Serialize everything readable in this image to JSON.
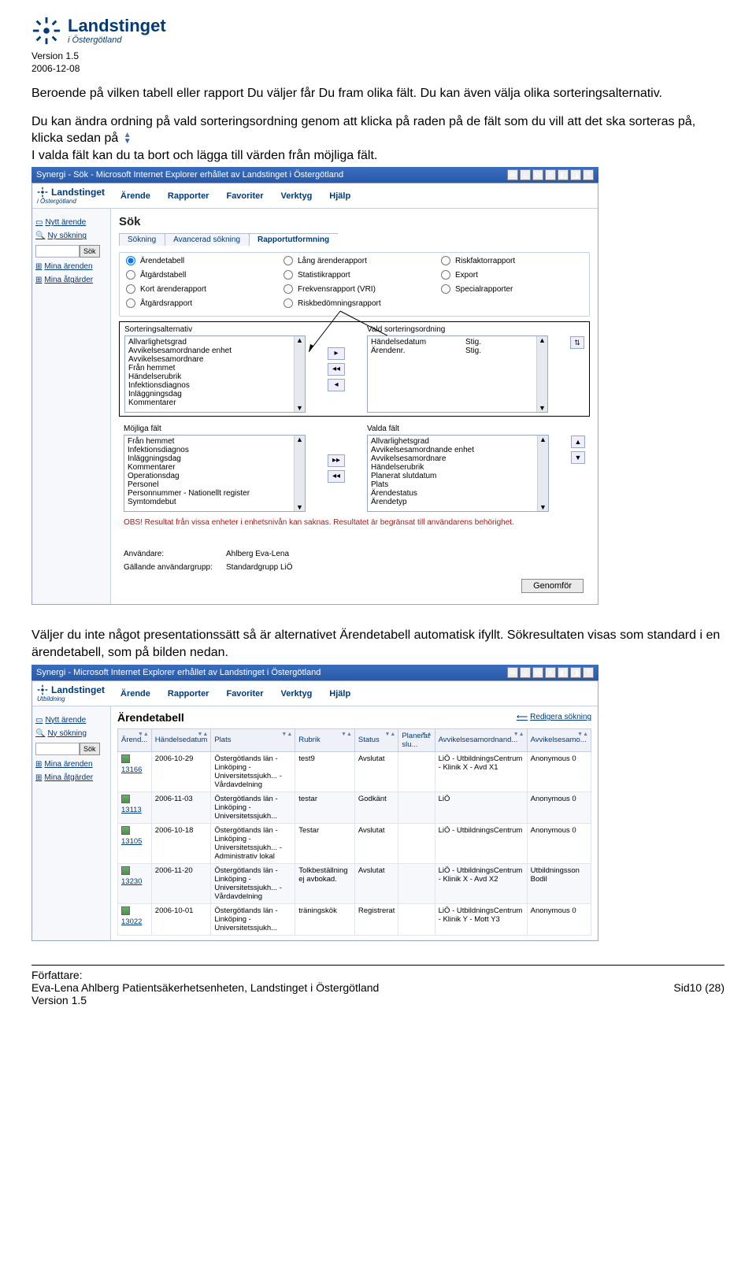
{
  "doc": {
    "logo_title": "Landstinget",
    "logo_sub": "i Östergötland",
    "version_label": "Version 1.5",
    "date": "2006-12-08",
    "para1": "Beroende på vilken tabell eller rapport Du väljer får Du fram olika fält. Du kan även välja olika sorteringsalternativ.",
    "para2a": "Du kan ändra ordning på vald sorteringsordning genom att klicka på raden på de fält som du vill att det ska sorteras på, klicka sedan på",
    "para2b": "I valda fält kan du ta bort och lägga till värden från möjliga fält.",
    "para3": "Väljer du inte något presentationssätt så är alternativet Ärendetabell automatisk ifyllt. Sökresultaten visas som standard i en ärendetabell, som på bilden nedan.",
    "footer_heading": "Författare:",
    "footer_author": "Eva-Lena Ahlberg Patientsäkerhetsenheten, Landstinget i Östergötland",
    "footer_version": "Version 1.5",
    "page_num": "Sid10 (28)"
  },
  "colors": {
    "brand_blue": "#003a7a",
    "titlebar_top": "#3b6ec0",
    "titlebar_bottom": "#285aa8",
    "border_light": "#c5cfde",
    "border_mid": "#97a8c7",
    "bg_soft": "#f6f8fb",
    "note_red": "#aa1a1a"
  },
  "shot1": {
    "titlebar": "Synergi - Sök - Microsoft Internet Explorer erhållet av Landstinget i Östergötland",
    "menubar": [
      "Ärende",
      "Rapporter",
      "Favoriter",
      "Verktyg",
      "Hjälp"
    ],
    "sidebar": {
      "nytt": "Nytt ärende",
      "nysok": "Ny sökning",
      "sok_btn": "Sök",
      "mina_ar": "Mina ärenden",
      "mina_at": "Mina åtgärder"
    },
    "sok_heading": "Sök",
    "tabs": [
      "Sökning",
      "Avancerad sökning",
      "Rapportutformning"
    ],
    "radios": [
      "Ärendetabell",
      "Lång ärenderapport",
      "Riskfaktorrapport",
      "Åtgärdstabell",
      "Statistikrapport",
      "Export",
      "Kort ärenderapport",
      "Frekvensrapport (VRI)",
      "Specialrapporter",
      "Åtgärdsrapport",
      "Riskbedömningsrapport",
      ""
    ],
    "radio_selected_index": 0,
    "sort_label": "Sorteringsalternativ",
    "sort_items": [
      "Allvarlighetsgrad",
      "Avvikelsesamordnande enhet",
      "Avvikelsesamordnare",
      "Från hemmet",
      "Händelserubrik",
      "Infektionsdiagnos",
      "Inläggningsdag",
      "Kommentarer"
    ],
    "vald_sort_label": "Vald sorteringsordning",
    "vald_sort_rows": [
      {
        "a": "Händelsedatum",
        "b": "Stig."
      },
      {
        "a": "Ärendenr.",
        "b": "Stig."
      }
    ],
    "mojliga_label": "Möjliga fält",
    "mojliga_items": [
      "Från hemmet",
      "Infektionsdiagnos",
      "Inläggningsdag",
      "Kommentarer",
      "Operationsdag",
      "Personel",
      "Personnummer - Nationellt register",
      "Symtomdebut"
    ],
    "valda_label": "Valda fält",
    "valda_items": [
      "Allvarlighetsgrad",
      "Avvikelsesamordnande enhet",
      "Avvikelsesamordnare",
      "Händelserubrik",
      "Planerat slutdatum",
      "Plats",
      "Ärendestatus",
      "Ärendetyp"
    ],
    "obs_note": "OBS! Resultat från vissa enheter i enhetsnivån kan saknas. Resultatet är begränsat till användarens behörighet.",
    "anvandare_k": "Användare:",
    "anvandare_v": "Ahlberg Eva-Lena",
    "grupp_k": "Gällande användargrupp:",
    "grupp_v": "Standardgrupp LiÖ",
    "genomfor": "Genomför"
  },
  "shot2": {
    "titlebar": "Synergi - Microsoft Internet Explorer erhållet av Landstinget i Östergötland",
    "menubar": [
      "Ärende",
      "Rapporter",
      "Favoriter",
      "Verktyg",
      "Hjälp"
    ],
    "sidebar": {
      "nytt": "Nytt ärende",
      "nysok": "Ny sökning",
      "sok_btn": "Sök",
      "mina_ar": "Mina ärenden",
      "mina_at": "Mina åtgärder"
    },
    "table_title": "Ärendetabell",
    "edit_link": "Redigera sökning",
    "columns": [
      "Ärend...",
      "Händelsedatum",
      "Plats",
      "Rubrik",
      "Status",
      "Planerat slu...",
      "Avvikelsesamordnand...",
      "Avvikelsesamo..."
    ],
    "rows": [
      {
        "id": "13166",
        "date": "2006-10-29",
        "plats": "Östergötlands län - Linköping - Universitetssjukh... - Vårdavdelning",
        "rubrik": "test9",
        "status": "Avslutat",
        "plan": "",
        "enhet": "LiÖ - UtbildningsCentrum - Klinik X - Avd X1",
        "samo": "Anonymous 0"
      },
      {
        "id": "13113",
        "date": "2006-11-03",
        "plats": "Östergötlands län - Linköping - Universitetssjukh...",
        "rubrik": "testar",
        "status": "Godkänt",
        "plan": "",
        "enhet": "LiÖ",
        "samo": "Anonymous 0"
      },
      {
        "id": "13105",
        "date": "2006-10-18",
        "plats": "Östergötlands län - Linköping - Universitetssjukh... - Administrativ lokal",
        "rubrik": "Testar",
        "status": "Avslutat",
        "plan": "",
        "enhet": "LiÖ - UtbildningsCentrum",
        "samo": "Anonymous 0"
      },
      {
        "id": "13230",
        "date": "2006-11-20",
        "plats": "Östergötlands län - Linköping - Universitetssjukh... - Vårdavdelning",
        "rubrik": "Tolkbeställning ej avbokad.",
        "status": "Avslutat",
        "plan": "",
        "enhet": "LiÖ - UtbildningsCentrum - Klinik X - Avd X2",
        "samo": "Utbildningsson Bodil"
      },
      {
        "id": "13022",
        "date": "2006-10-01",
        "plats": "Östergötlands län - Linköping - Universitetssjukh...",
        "rubrik": "träningskök",
        "status": "Registrerat",
        "plan": "",
        "enhet": "LiÖ - UtbildningsCentrum - Klinik Y - Mott Y3",
        "samo": "Anonymous 0"
      }
    ]
  }
}
